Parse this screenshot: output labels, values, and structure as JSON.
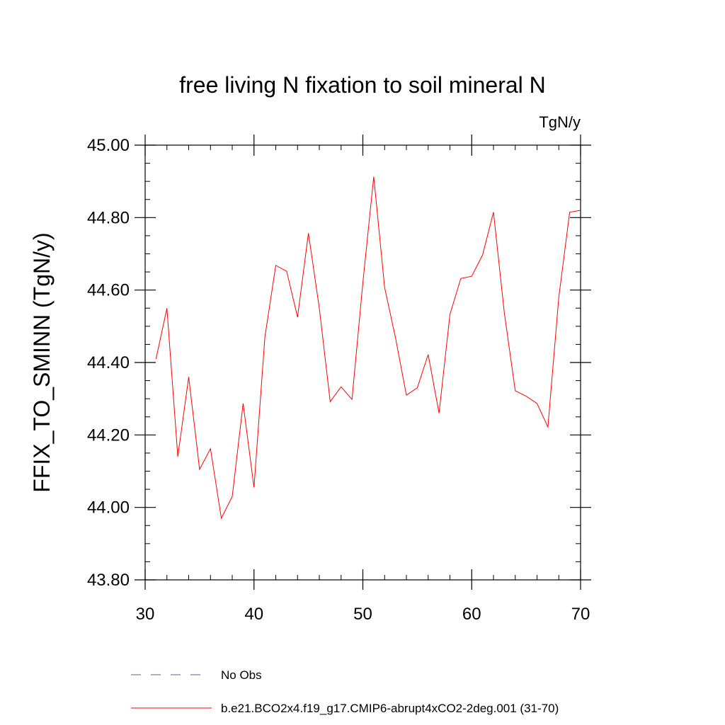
{
  "chart_data": {
    "type": "line",
    "title": "free living N fixation to soil mineral N",
    "units": "TgN/y",
    "ylabel": "FFIX_TO_SMINN  (TgN/y)",
    "xlabel": "",
    "xlim": [
      30,
      70
    ],
    "ylim": [
      43.8,
      45.0
    ],
    "x_ticks": [
      30,
      40,
      50,
      60,
      70
    ],
    "x_tick_labels": [
      "30",
      "40",
      "50",
      "60",
      "70"
    ],
    "y_ticks": [
      43.8,
      44.0,
      44.2,
      44.4,
      44.6,
      44.8,
      45.0
    ],
    "y_tick_labels": [
      "43.80",
      "44.00",
      "44.20",
      "44.40",
      "44.60",
      "44.80",
      "45.00"
    ],
    "series": [
      {
        "name": "No Obs",
        "color": "#5a5aa8",
        "dash": "dashed",
        "x": [],
        "values": []
      },
      {
        "name": "b.e21.BCO2x4.f19_g17.CMIP6-abrupt4xCO2-2deg.001 (31-70)",
        "color": "#ff0000",
        "dash": "solid",
        "x": [
          31,
          32,
          33,
          34,
          35,
          36,
          37,
          38,
          39,
          40,
          41,
          42,
          43,
          44,
          45,
          46,
          47,
          48,
          49,
          50,
          51,
          52,
          53,
          54,
          55,
          56,
          57,
          58,
          59,
          60,
          61,
          62,
          63,
          64,
          65,
          66,
          67,
          68,
          69,
          70
        ],
        "values": [
          44.41,
          44.55,
          44.14,
          44.36,
          44.105,
          44.162,
          43.97,
          44.03,
          44.287,
          44.055,
          44.47,
          44.668,
          44.652,
          44.525,
          44.757,
          44.55,
          44.292,
          44.333,
          44.298,
          44.62,
          44.913,
          44.607,
          44.468,
          44.31,
          44.33,
          44.422,
          44.26,
          44.533,
          44.632,
          44.638,
          44.697,
          44.815,
          44.536,
          44.322,
          44.307,
          44.287,
          44.222,
          44.58,
          44.815,
          44.82
        ]
      }
    ]
  }
}
